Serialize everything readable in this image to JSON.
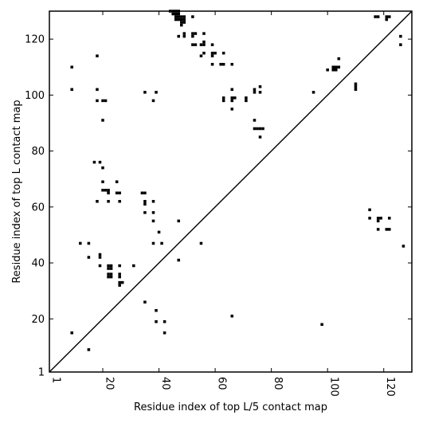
{
  "chart_data": {
    "type": "heatmap",
    "title": "",
    "xlabel": "Residue index of top L/5 contact map",
    "ylabel": "Residue index of top L contact map",
    "xlim": [
      1,
      130
    ],
    "ylim": [
      1,
      130
    ],
    "x_ticks": [
      1,
      20,
      40,
      60,
      80,
      100,
      120
    ],
    "y_ticks": [
      1,
      20,
      40,
      60,
      80,
      100,
      120
    ],
    "x_tick_labels": [
      "1",
      "20",
      "40",
      "60",
      "80",
      "100",
      "120"
    ],
    "y_tick_labels": [
      "1",
      "20",
      "40",
      "60",
      "80",
      "100",
      "120"
    ],
    "x_tick_rotation": 90,
    "grid": false,
    "cell_color": "#000000",
    "diagonal": true,
    "upper_cells": [
      [
        9,
        110
      ],
      [
        9,
        102
      ],
      [
        18,
        114
      ],
      [
        18,
        102
      ],
      [
        18,
        98
      ],
      [
        20,
        98
      ],
      [
        21,
        98
      ],
      [
        20,
        91
      ],
      [
        35,
        101
      ],
      [
        39,
        101
      ],
      [
        38,
        98
      ],
      [
        44,
        130
      ],
      [
        45,
        130
      ],
      [
        46,
        130
      ],
      [
        47,
        130
      ],
      [
        45,
        129
      ],
      [
        46,
        129
      ],
      [
        47,
        129
      ],
      [
        46,
        128
      ],
      [
        47,
        128
      ],
      [
        48,
        128
      ],
      [
        49,
        128
      ],
      [
        46,
        127
      ],
      [
        47,
        127
      ],
      [
        48,
        127
      ],
      [
        49,
        127
      ],
      [
        48,
        126
      ],
      [
        49,
        126
      ],
      [
        48,
        125
      ],
      [
        52,
        128
      ],
      [
        47,
        121
      ],
      [
        49,
        122
      ],
      [
        49,
        121
      ],
      [
        52,
        122
      ],
      [
        53,
        122
      ],
      [
        52,
        121
      ],
      [
        56,
        122
      ],
      [
        52,
        118
      ],
      [
        53,
        118
      ],
      [
        55,
        118
      ],
      [
        56,
        118
      ],
      [
        59,
        118
      ],
      [
        56,
        119
      ],
      [
        55,
        114
      ],
      [
        56,
        115
      ],
      [
        59,
        115
      ],
      [
        60,
        115
      ],
      [
        59,
        114
      ],
      [
        63,
        115
      ],
      [
        59,
        111
      ],
      [
        62,
        111
      ],
      [
        63,
        111
      ],
      [
        66,
        111
      ],
      [
        63,
        99
      ],
      [
        63,
        98
      ],
      [
        66,
        102
      ],
      [
        66,
        99
      ],
      [
        67,
        99
      ],
      [
        66,
        98
      ],
      [
        66,
        95
      ],
      [
        71,
        99
      ],
      [
        71,
        98
      ],
      [
        74,
        102
      ],
      [
        74,
        101
      ],
      [
        76,
        103
      ],
      [
        76,
        101
      ],
      [
        95,
        101
      ],
      [
        100,
        109
      ],
      [
        102,
        110
      ],
      [
        103,
        110
      ],
      [
        104,
        110
      ],
      [
        102,
        109
      ],
      [
        103,
        109
      ],
      [
        104,
        113
      ],
      [
        110,
        104
      ],
      [
        110,
        103
      ],
      [
        110,
        102
      ],
      [
        117,
        128
      ],
      [
        118,
        128
      ],
      [
        121,
        128
      ],
      [
        122,
        128
      ],
      [
        121,
        127
      ],
      [
        126,
        121
      ],
      [
        126,
        118
      ]
    ],
    "lower_cells": [
      [
        9,
        15
      ],
      [
        15,
        9
      ],
      [
        12,
        47
      ],
      [
        15,
        47
      ],
      [
        15,
        42
      ],
      [
        19,
        43
      ],
      [
        19,
        42
      ],
      [
        19,
        39
      ],
      [
        22,
        39
      ],
      [
        23,
        39
      ],
      [
        22,
        38
      ],
      [
        23,
        38
      ],
      [
        22,
        36
      ],
      [
        23,
        36
      ],
      [
        22,
        35
      ],
      [
        23,
        35
      ],
      [
        26,
        39
      ],
      [
        26,
        36
      ],
      [
        26,
        35
      ],
      [
        26,
        33
      ],
      [
        27,
        33
      ],
      [
        26,
        32
      ],
      [
        31,
        39
      ],
      [
        17,
        76
      ],
      [
        19,
        76
      ],
      [
        20,
        74
      ],
      [
        20,
        69
      ],
      [
        20,
        66
      ],
      [
        21,
        66
      ],
      [
        22,
        66
      ],
      [
        22,
        65
      ],
      [
        25,
        69
      ],
      [
        25,
        65
      ],
      [
        26,
        65
      ],
      [
        26,
        62
      ],
      [
        18,
        62
      ],
      [
        22,
        62
      ],
      [
        34,
        65
      ],
      [
        35,
        65
      ],
      [
        35,
        62
      ],
      [
        35,
        61
      ],
      [
        35,
        58
      ],
      [
        38,
        62
      ],
      [
        38,
        58
      ],
      [
        38,
        55
      ],
      [
        40,
        51
      ],
      [
        38,
        47
      ],
      [
        41,
        47
      ],
      [
        47,
        55
      ],
      [
        47,
        41
      ],
      [
        55,
        47
      ],
      [
        35,
        26
      ],
      [
        39,
        23
      ],
      [
        39,
        19
      ],
      [
        42,
        19
      ],
      [
        42,
        15
      ],
      [
        66,
        21
      ],
      [
        98,
        18
      ],
      [
        74,
        91
      ],
      [
        74,
        88
      ],
      [
        75,
        88
      ],
      [
        76,
        88
      ],
      [
        77,
        88
      ],
      [
        76,
        85
      ],
      [
        115,
        59
      ],
      [
        115,
        56
      ],
      [
        118,
        56
      ],
      [
        119,
        56
      ],
      [
        118,
        55
      ],
      [
        122,
        56
      ],
      [
        118,
        52
      ],
      [
        121,
        52
      ],
      [
        122,
        52
      ],
      [
        127,
        46
      ]
    ]
  }
}
